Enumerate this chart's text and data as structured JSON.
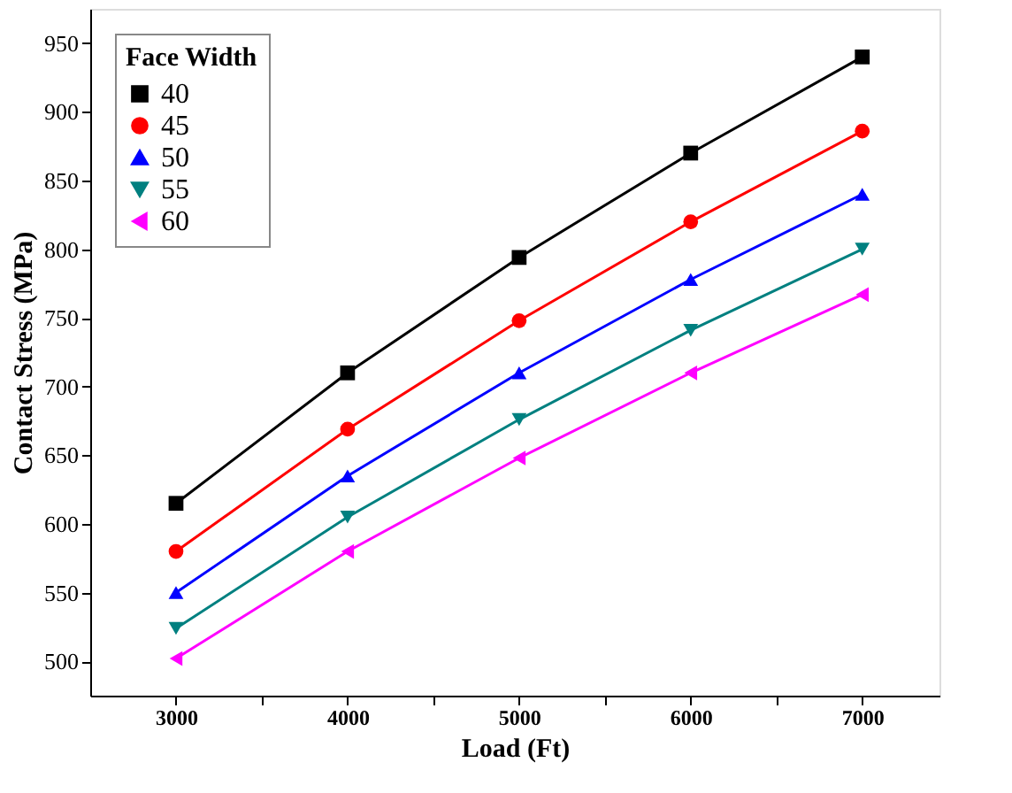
{
  "chart_data": {
    "type": "line",
    "xlabel": "Load (Ft)",
    "ylabel": "Contact Stress (MPa)",
    "legend_title": "Face Width",
    "x": [
      3000,
      4000,
      5000,
      6000,
      7000
    ],
    "series": [
      {
        "name": "40",
        "color": "#000000",
        "marker": "square",
        "values": [
          615,
          710,
          794,
          870,
          940
        ]
      },
      {
        "name": "45",
        "color": "#ff0000",
        "marker": "circle",
        "values": [
          580,
          669,
          748,
          820,
          886
        ]
      },
      {
        "name": "50",
        "color": "#0000ff",
        "marker": "triangle",
        "values": [
          550,
          635,
          710,
          778,
          840
        ]
      },
      {
        "name": "55",
        "color": "#008080",
        "marker": "triangle-down",
        "values": [
          524,
          605,
          676,
          741,
          800
        ]
      },
      {
        "name": "60",
        "color": "#ff00ff",
        "marker": "triangle-left",
        "values": [
          502,
          580,
          648,
          710,
          767
        ]
      }
    ],
    "xlim": [
      2500,
      7450
    ],
    "ylim": [
      475,
      975
    ],
    "xticks": [
      3000,
      {
        "value": 3500,
        "label": null
      },
      4000,
      {
        "value": 4500,
        "label": null
      },
      5000,
      {
        "value": 5500,
        "label": null
      },
      6000,
      {
        "value": 6500,
        "label": null
      },
      7000
    ],
    "yticks": [
      500,
      550,
      600,
      650,
      700,
      750,
      800,
      850,
      900,
      950
    ],
    "grid": false,
    "legend": "top left",
    "line_style": "solid"
  }
}
